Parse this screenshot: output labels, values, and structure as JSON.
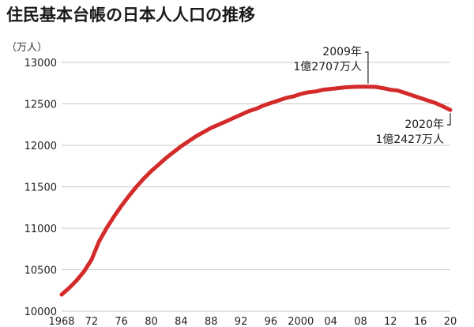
{
  "chart_data": {
    "type": "line",
    "title": "住民基本台帳の日本人人口の推移",
    "ylabel": "（万人）",
    "xlabel": "",
    "ylim": [
      10000,
      13000
    ],
    "xlim": [
      1968,
      2020
    ],
    "yticks": [
      "10000",
      "10500",
      "11000",
      "11500",
      "12000",
      "12500",
      "13000"
    ],
    "xticks": [
      {
        "x": 1968,
        "label": "1968"
      },
      {
        "x": 1972,
        "label": "72"
      },
      {
        "x": 1976,
        "label": "76"
      },
      {
        "x": 1980,
        "label": "80"
      },
      {
        "x": 1984,
        "label": "84"
      },
      {
        "x": 1988,
        "label": "88"
      },
      {
        "x": 1992,
        "label": "92"
      },
      {
        "x": 1996,
        "label": "96"
      },
      {
        "x": 2000,
        "label": "2000"
      },
      {
        "x": 2004,
        "label": "04"
      },
      {
        "x": 2008,
        "label": "08"
      },
      {
        "x": 2012,
        "label": "12"
      },
      {
        "x": 2016,
        "label": "16"
      },
      {
        "x": 2020,
        "label": "20"
      }
    ],
    "grid": true,
    "series": [
      {
        "color": "#d32a2a",
        "x": [
          1968,
          1969,
          1970,
          1971,
          1972,
          1973,
          1974,
          1975,
          1976,
          1977,
          1978,
          1979,
          1980,
          1981,
          1982,
          1983,
          1984,
          1985,
          1986,
          1987,
          1988,
          1989,
          1990,
          1991,
          1992,
          1993,
          1994,
          1995,
          1996,
          1997,
          1998,
          1999,
          2000,
          2001,
          2002,
          2003,
          2004,
          2005,
          2006,
          2007,
          2008,
          2009,
          2010,
          2011,
          2012,
          2013,
          2014,
          2015,
          2016,
          2017,
          2018,
          2019,
          2020
        ],
        "values": [
          10200,
          10280,
          10370,
          10480,
          10620,
          10840,
          11000,
          11140,
          11270,
          11390,
          11500,
          11600,
          11690,
          11770,
          11850,
          11920,
          11990,
          12050,
          12110,
          12160,
          12210,
          12250,
          12290,
          12330,
          12370,
          12410,
          12440,
          12480,
          12510,
          12540,
          12570,
          12590,
          12620,
          12640,
          12650,
          12670,
          12680,
          12690,
          12700,
          12705,
          12707,
          12707,
          12705,
          12690,
          12670,
          12660,
          12630,
          12600,
          12570,
          12540,
          12510,
          12470,
          12427
        ]
      }
    ],
    "annotations": [
      {
        "x": 2009,
        "y": 12707,
        "line1": "2009年",
        "line2": "1億2707万人"
      },
      {
        "x": 2020,
        "y": 12427,
        "line1": "2020年",
        "line2": "1億2427万人"
      }
    ]
  }
}
